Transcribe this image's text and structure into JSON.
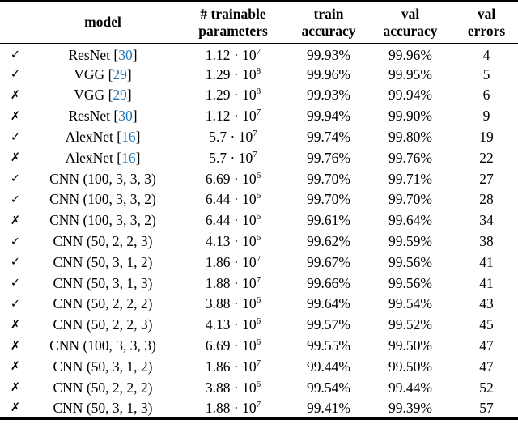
{
  "table": {
    "headers": {
      "check": "",
      "model": "model",
      "params_line1": "# trainable",
      "params_line2": "parameters",
      "train_line1": "train",
      "train_line2": "accuracy",
      "val_line1": "val",
      "val_line2": "accuracy",
      "errors_line1": "val",
      "errors_line2": "errors"
    },
    "check_glyph": "✓",
    "cross_glyph": "✗",
    "dot": "·",
    "power_base": "10",
    "ref_open": "[",
    "ref_close": "]",
    "rows": [
      {
        "mark": "check",
        "model": "ResNet",
        "ref": "30",
        "coeff": "1.12",
        "exp": "7",
        "train": "99.93%",
        "val": "99.96%",
        "errors": "4"
      },
      {
        "mark": "check",
        "model": "VGG",
        "ref": "29",
        "coeff": "1.29",
        "exp": "8",
        "train": "99.96%",
        "val": "99.95%",
        "errors": "5"
      },
      {
        "mark": "cross",
        "model": "VGG",
        "ref": "29",
        "coeff": "1.29",
        "exp": "8",
        "train": "99.93%",
        "val": "99.94%",
        "errors": "6"
      },
      {
        "mark": "cross",
        "model": "ResNet",
        "ref": "30",
        "coeff": "1.12",
        "exp": "7",
        "train": "99.94%",
        "val": "99.90%",
        "errors": "9"
      },
      {
        "mark": "check",
        "model": "AlexNet",
        "ref": "16",
        "coeff": "5.7",
        "exp": "7",
        "train": "99.74%",
        "val": "99.80%",
        "errors": "19"
      },
      {
        "mark": "cross",
        "model": "AlexNet",
        "ref": "16",
        "coeff": "5.7",
        "exp": "7",
        "train": "99.76%",
        "val": "99.76%",
        "errors": "22"
      },
      {
        "mark": "check",
        "model": "CNN (100, 3, 3, 3)",
        "ref": null,
        "coeff": "6.69",
        "exp": "6",
        "train": "99.70%",
        "val": "99.71%",
        "errors": "27"
      },
      {
        "mark": "check",
        "model": "CNN (100, 3, 3, 2)",
        "ref": null,
        "coeff": "6.44",
        "exp": "6",
        "train": "99.70%",
        "val": "99.70%",
        "errors": "28"
      },
      {
        "mark": "cross",
        "model": "CNN (100, 3, 3, 2)",
        "ref": null,
        "coeff": "6.44",
        "exp": "6",
        "train": "99.61%",
        "val": "99.64%",
        "errors": "34"
      },
      {
        "mark": "check",
        "model": "CNN (50, 2, 2, 3)",
        "ref": null,
        "coeff": "4.13",
        "exp": "6",
        "train": "99.62%",
        "val": "99.59%",
        "errors": "38"
      },
      {
        "mark": "check",
        "model": "CNN (50, 3, 1, 2)",
        "ref": null,
        "coeff": "1.86",
        "exp": "7",
        "train": "99.67%",
        "val": "99.56%",
        "errors": "41"
      },
      {
        "mark": "check",
        "model": "CNN (50, 3, 1, 3)",
        "ref": null,
        "coeff": "1.88",
        "exp": "7",
        "train": "99.66%",
        "val": "99.56%",
        "errors": "41"
      },
      {
        "mark": "check",
        "model": "CNN (50, 2, 2, 2)",
        "ref": null,
        "coeff": "3.88",
        "exp": "6",
        "train": "99.64%",
        "val": "99.54%",
        "errors": "43"
      },
      {
        "mark": "cross",
        "model": "CNN (50, 2, 2, 3)",
        "ref": null,
        "coeff": "4.13",
        "exp": "6",
        "train": "99.57%",
        "val": "99.52%",
        "errors": "45"
      },
      {
        "mark": "cross",
        "model": "CNN (100, 3, 3, 3)",
        "ref": null,
        "coeff": "6.69",
        "exp": "6",
        "train": "99.55%",
        "val": "99.50%",
        "errors": "47"
      },
      {
        "mark": "cross",
        "model": "CNN (50, 3, 1, 2)",
        "ref": null,
        "coeff": "1.86",
        "exp": "7",
        "train": "99.44%",
        "val": "99.50%",
        "errors": "47"
      },
      {
        "mark": "cross",
        "model": "CNN (50, 2, 2, 2)",
        "ref": null,
        "coeff": "3.88",
        "exp": "6",
        "train": "99.54%",
        "val": "99.44%",
        "errors": "52"
      },
      {
        "mark": "cross",
        "model": "CNN (50, 3, 1, 3)",
        "ref": null,
        "coeff": "1.88",
        "exp": "7",
        "train": "99.41%",
        "val": "99.39%",
        "errors": "57"
      }
    ]
  },
  "colors": {
    "cite_blue": "#2277b8",
    "text": "#000000",
    "background": "#ffffff"
  }
}
